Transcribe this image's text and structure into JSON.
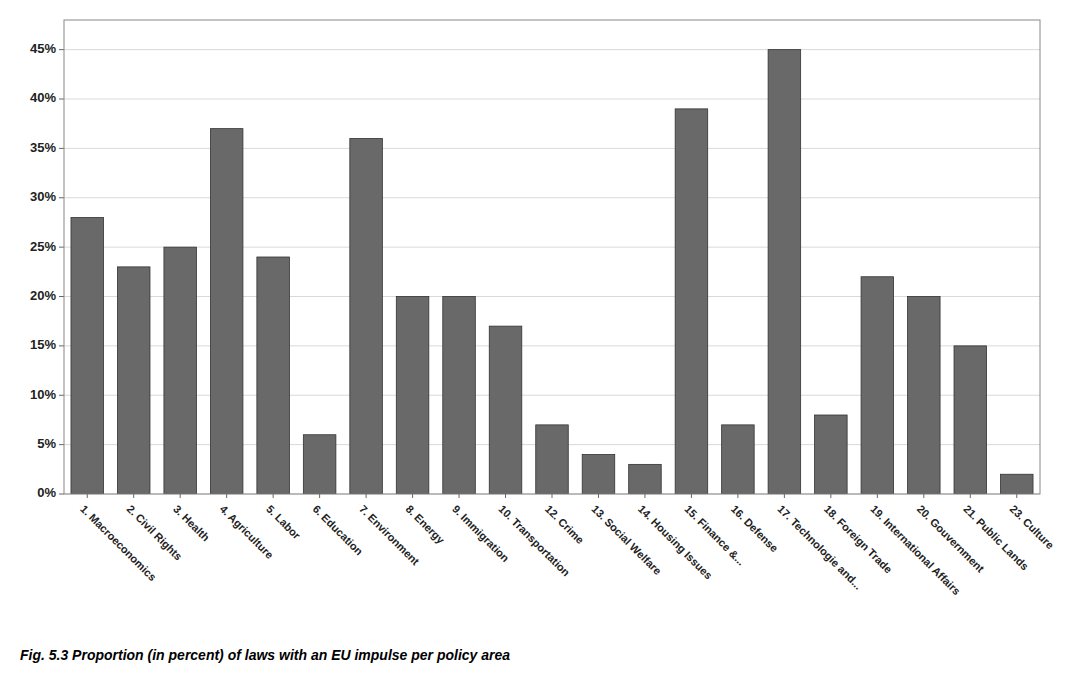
{
  "chart_data": {
    "type": "bar",
    "caption": "Fig. 5.3  Proportion (in percent) of laws with an EU impulse per policy area",
    "categories": [
      "1. Macroeconomics",
      "2. Civil Rights",
      "3. Health",
      "4. Agriculture",
      "5. Labor",
      "6. Education",
      "7. Environment",
      "8. Energy",
      "9. Immigration",
      "10. Transportation",
      "12. Crime",
      "13. Social Welfare",
      "14. Housing Issues",
      "15. Finance &...",
      "16. Defense",
      "17. Technologie and...",
      "18. Foreign Trade",
      "19. International Affairs",
      "20. Gouvernment",
      "21. Public Lands",
      "23. Culture"
    ],
    "values": [
      28,
      23,
      25,
      37,
      24,
      6,
      36,
      20,
      20,
      17,
      7,
      4,
      3,
      39,
      7,
      45,
      8,
      22,
      20,
      15,
      2
    ],
    "color": "#696969",
    "ylim": [
      0,
      48
    ],
    "yticks": [
      {
        "value": 0,
        "label": "0%"
      },
      {
        "value": 5,
        "label": "5%"
      },
      {
        "value": 10,
        "label": "10%"
      },
      {
        "value": 15,
        "label": "15%"
      },
      {
        "value": 20,
        "label": "20%"
      },
      {
        "value": 25,
        "label": "25%"
      },
      {
        "value": 30,
        "label": "30%"
      },
      {
        "value": 35,
        "label": "35%"
      },
      {
        "value": 40,
        "label": "40%"
      },
      {
        "value": 45,
        "label": "45%"
      }
    ],
    "grid": true
  }
}
